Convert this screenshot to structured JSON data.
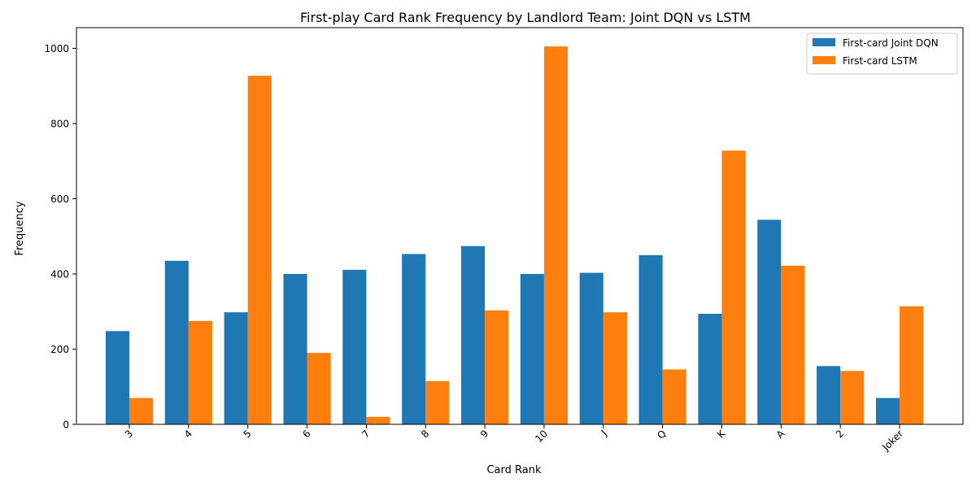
{
  "chart_data": {
    "type": "bar",
    "title": "First-play Card Rank Frequency by Landlord Team: Joint DQN vs LSTM",
    "xlabel": "Card Rank",
    "ylabel": "Frequency",
    "categories": [
      "3",
      "4",
      "5",
      "6",
      "7",
      "8",
      "9",
      "10",
      "J",
      "Q",
      "K",
      "A",
      "2",
      "Joker"
    ],
    "ylim": [
      0,
      1055
    ],
    "yticks": [
      0,
      200,
      400,
      600,
      800,
      1000
    ],
    "grid": false,
    "legend_position": "top-right",
    "series": [
      {
        "name": "First-card Joint DQN",
        "color": "#1f77b4",
        "values": [
          248,
          435,
          298,
          400,
          411,
          453,
          474,
          400,
          403,
          450,
          294,
          544,
          155,
          70
        ]
      },
      {
        "name": "First-card LSTM",
        "color": "#ff7f0e",
        "values": [
          70,
          275,
          927,
          190,
          20,
          115,
          303,
          1005,
          298,
          146,
          728,
          422,
          142,
          314
        ]
      }
    ]
  }
}
